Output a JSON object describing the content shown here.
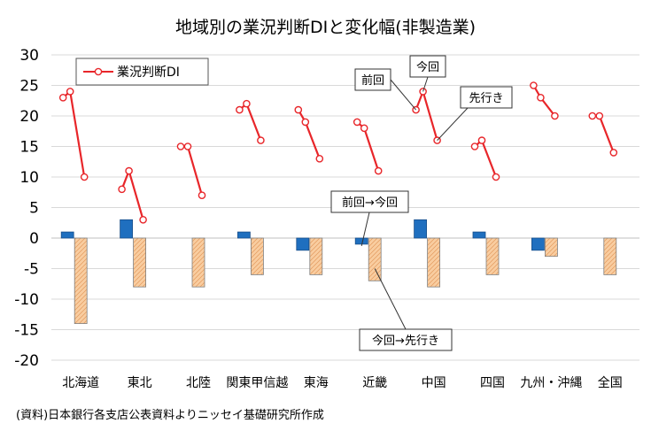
{
  "title": "地域別の業況判断DIと変化幅(非製造業)",
  "source": "(資料)日本銀行各支店公表資料よりニッセイ基礎研究所作成",
  "legend": {
    "line_label": "業況判断DI"
  },
  "callouts": {
    "prev": "前回",
    "now": "今回",
    "fwd": "先行き",
    "prev_to_now": "前回→今回",
    "now_to_fwd": "今回→先行き"
  },
  "colors": {
    "line": "#e8262a",
    "bar_prev_now": "#1f6fbf",
    "bar_now_fwd": "#f9cda0",
    "grid": "#d9d9d9"
  },
  "chart_data": {
    "type": "bar",
    "categories": [
      "北海道",
      "東北",
      "北陸",
      "関東甲信越",
      "東海",
      "近畿",
      "中国",
      "四国",
      "九州・沖縄",
      "全国"
    ],
    "ylim": [
      -20,
      30
    ],
    "yticks": [
      30,
      25,
      20,
      15,
      10,
      5,
      0,
      -5,
      -10,
      -15,
      -20
    ],
    "grid": true,
    "legend_position": "top-left",
    "series": [
      {
        "name": "業況判断DI",
        "kind": "line-triplet",
        "points": [
          [
            23,
            24,
            10
          ],
          [
            8,
            11,
            3
          ],
          [
            15,
            15,
            7
          ],
          [
            21,
            22,
            16
          ],
          [
            21,
            19,
            13
          ],
          [
            19,
            18,
            11
          ],
          [
            21,
            24,
            16
          ],
          [
            15,
            16,
            10
          ],
          [
            25,
            23,
            20
          ],
          [
            20,
            20,
            14
          ]
        ]
      },
      {
        "name": "前回→今回",
        "kind": "bar",
        "values": [
          1,
          3,
          0,
          1,
          -2,
          -1,
          3,
          1,
          -2,
          0
        ]
      },
      {
        "name": "今回→先行き",
        "kind": "bar",
        "values": [
          -14,
          -8,
          -8,
          -6,
          -6,
          -7,
          -8,
          -6,
          -3,
          -6
        ]
      }
    ]
  }
}
